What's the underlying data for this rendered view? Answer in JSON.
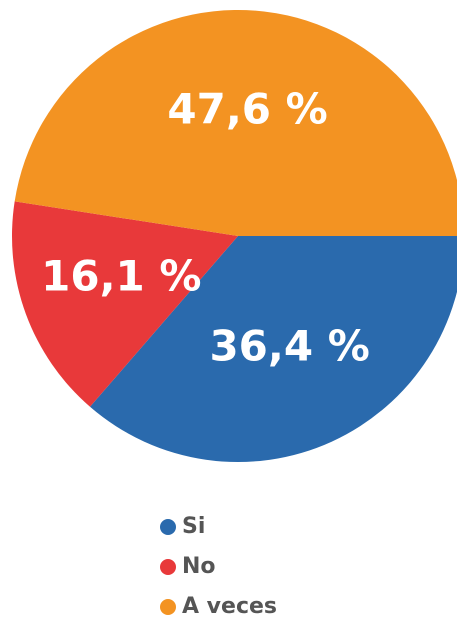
{
  "chart_data": {
    "type": "pie",
    "categories": [
      "Si",
      "No",
      "A veces"
    ],
    "values": [
      36.4,
      16.1,
      47.6
    ],
    "value_labels": [
      "36,4 %",
      "16,1 %",
      "47,6 %"
    ],
    "colors": [
      "#2a6aad",
      "#e8393a",
      "#f39322"
    ]
  }
}
